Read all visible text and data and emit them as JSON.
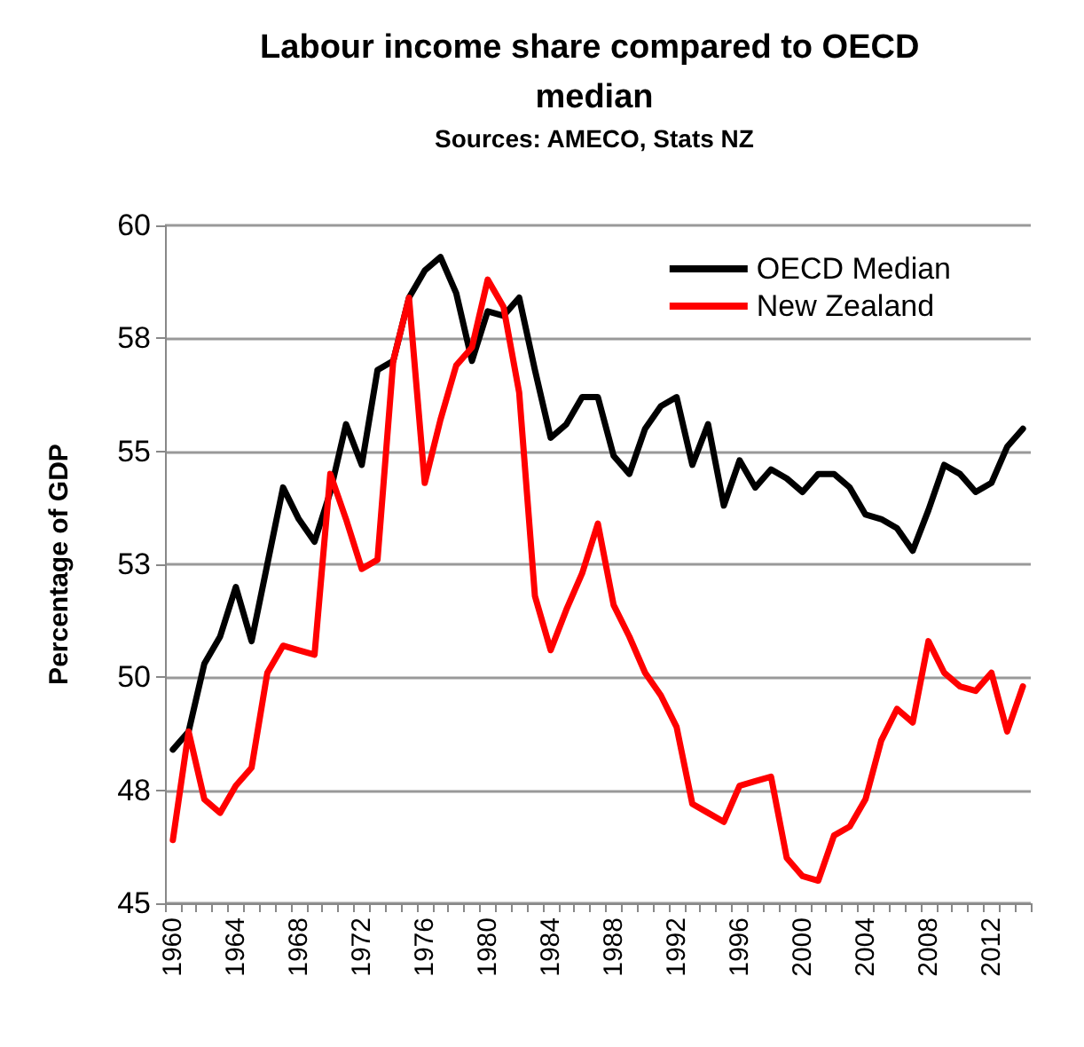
{
  "chart_data": {
    "type": "line",
    "title": "Labour income share compared to OECD median",
    "subtitle": "Sources: AMECO, Stats NZ",
    "ylabel": "Percentage of GDP",
    "categories": [
      "1960",
      null,
      null,
      null,
      "1964",
      null,
      null,
      null,
      "1968",
      null,
      null,
      null,
      "1972",
      null,
      null,
      null,
      "1976",
      null,
      null,
      null,
      "1980",
      null,
      null,
      null,
      "1984",
      null,
      null,
      null,
      "1988",
      null,
      null,
      null,
      "1992",
      null,
      null,
      null,
      "1996",
      null,
      null,
      null,
      "2000",
      null,
      null,
      null,
      "2004",
      null,
      null,
      null,
      "2008",
      null,
      null,
      null,
      "2012",
      null,
      null
    ],
    "series": [
      {
        "name": "OECD Median",
        "color": "#000000",
        "values": [
          48.4,
          48.8,
          50.3,
          50.9,
          52.0,
          50.8,
          52.5,
          54.2,
          53.5,
          53.0,
          54.1,
          55.6,
          54.7,
          56.8,
          57.0,
          58.4,
          59.0,
          59.3,
          58.5,
          57.0,
          58.1,
          58.0,
          58.4,
          56.8,
          55.3,
          55.6,
          56.2,
          56.2,
          54.9,
          54.5,
          55.5,
          56.0,
          56.2,
          54.7,
          55.6,
          53.8,
          54.8,
          54.2,
          54.6,
          54.4,
          54.1,
          54.5,
          54.5,
          54.2,
          53.6,
          53.5,
          53.3,
          52.8,
          53.7,
          54.7,
          54.5,
          54.1,
          54.3,
          55.1,
          55.5
        ]
      },
      {
        "name": "New Zealand",
        "color": "#ff0000",
        "values": [
          46.4,
          48.8,
          47.3,
          47.0,
          47.6,
          48.0,
          50.1,
          50.7,
          50.6,
          50.5,
          54.5,
          53.5,
          52.4,
          52.6,
          57.0,
          58.4,
          54.3,
          55.7,
          56.9,
          57.3,
          58.8,
          58.2,
          56.3,
          51.8,
          50.6,
          51.5,
          52.3,
          53.4,
          51.6,
          50.9,
          50.1,
          49.6,
          48.9,
          47.2,
          47.0,
          46.8,
          47.6,
          47.7,
          47.8,
          46.0,
          45.6,
          45.5,
          46.5,
          46.7,
          47.3,
          48.6,
          49.3,
          49.0,
          50.8,
          50.1,
          49.8,
          49.7,
          50.1,
          48.8,
          49.8
        ]
      }
    ],
    "ylim": [
      45,
      60
    ],
    "yticks": [
      45,
      {
        "value": 47.5,
        "label": "48"
      },
      50,
      {
        "value": 52.5,
        "label": "53"
      },
      55,
      {
        "value": 57.5,
        "label": "58"
      },
      60
    ],
    "grid": "y",
    "legend": "top right",
    "marker": "none",
    "line_style": "solid"
  }
}
